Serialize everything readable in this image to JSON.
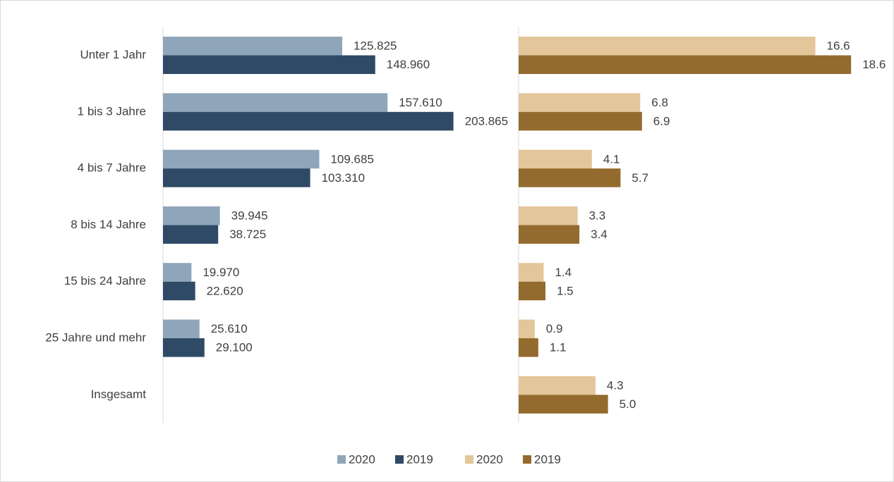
{
  "chart_data": [
    {
      "type": "bar",
      "orientation": "horizontal",
      "categories": [
        "Unter 1 Jahr",
        "1 bis 3 Jahre",
        "4 bis 7 Jahre",
        "8 bis 14 Jahre",
        "15 bis 24 Jahre",
        "25 Jahre und mehr",
        "Insgesamt"
      ],
      "xlim": [
        0,
        210000
      ],
      "series": [
        {
          "name": "2020",
          "color": "#8fa5ba",
          "values": [
            125825,
            157610,
            109685,
            39945,
            19970,
            25610,
            null
          ],
          "value_labels": [
            "125.825",
            "157.610",
            "109.685",
            "39.945",
            "19.970",
            "25.610",
            null
          ]
        },
        {
          "name": "2019",
          "color": "#2e4a66",
          "values": [
            148960,
            203865,
            103310,
            38725,
            22620,
            29100,
            null
          ],
          "value_labels": [
            "148.960",
            "203.865",
            "103.310",
            "38.725",
            "22.620",
            "29.100",
            null
          ]
        }
      ]
    },
    {
      "type": "bar",
      "orientation": "horizontal",
      "xlim": [
        0,
        19.5
      ],
      "series": [
        {
          "name": "2020",
          "color": "#e3c699",
          "values": [
            16.6,
            6.8,
            4.1,
            3.3,
            1.4,
            0.9,
            4.3
          ],
          "value_labels": [
            "16.6",
            "6.8",
            "4.1",
            "3.3",
            "1.4",
            "0.9",
            "4.3"
          ]
        },
        {
          "name": "2019",
          "color": "#936b2e",
          "values": [
            18.6,
            6.9,
            5.7,
            3.4,
            1.5,
            1.1,
            5.0
          ],
          "value_labels": [
            "18.6",
            "6.9",
            "5.7",
            "3.4",
            "1.5",
            "1.1",
            "5.0"
          ]
        }
      ]
    }
  ]
}
